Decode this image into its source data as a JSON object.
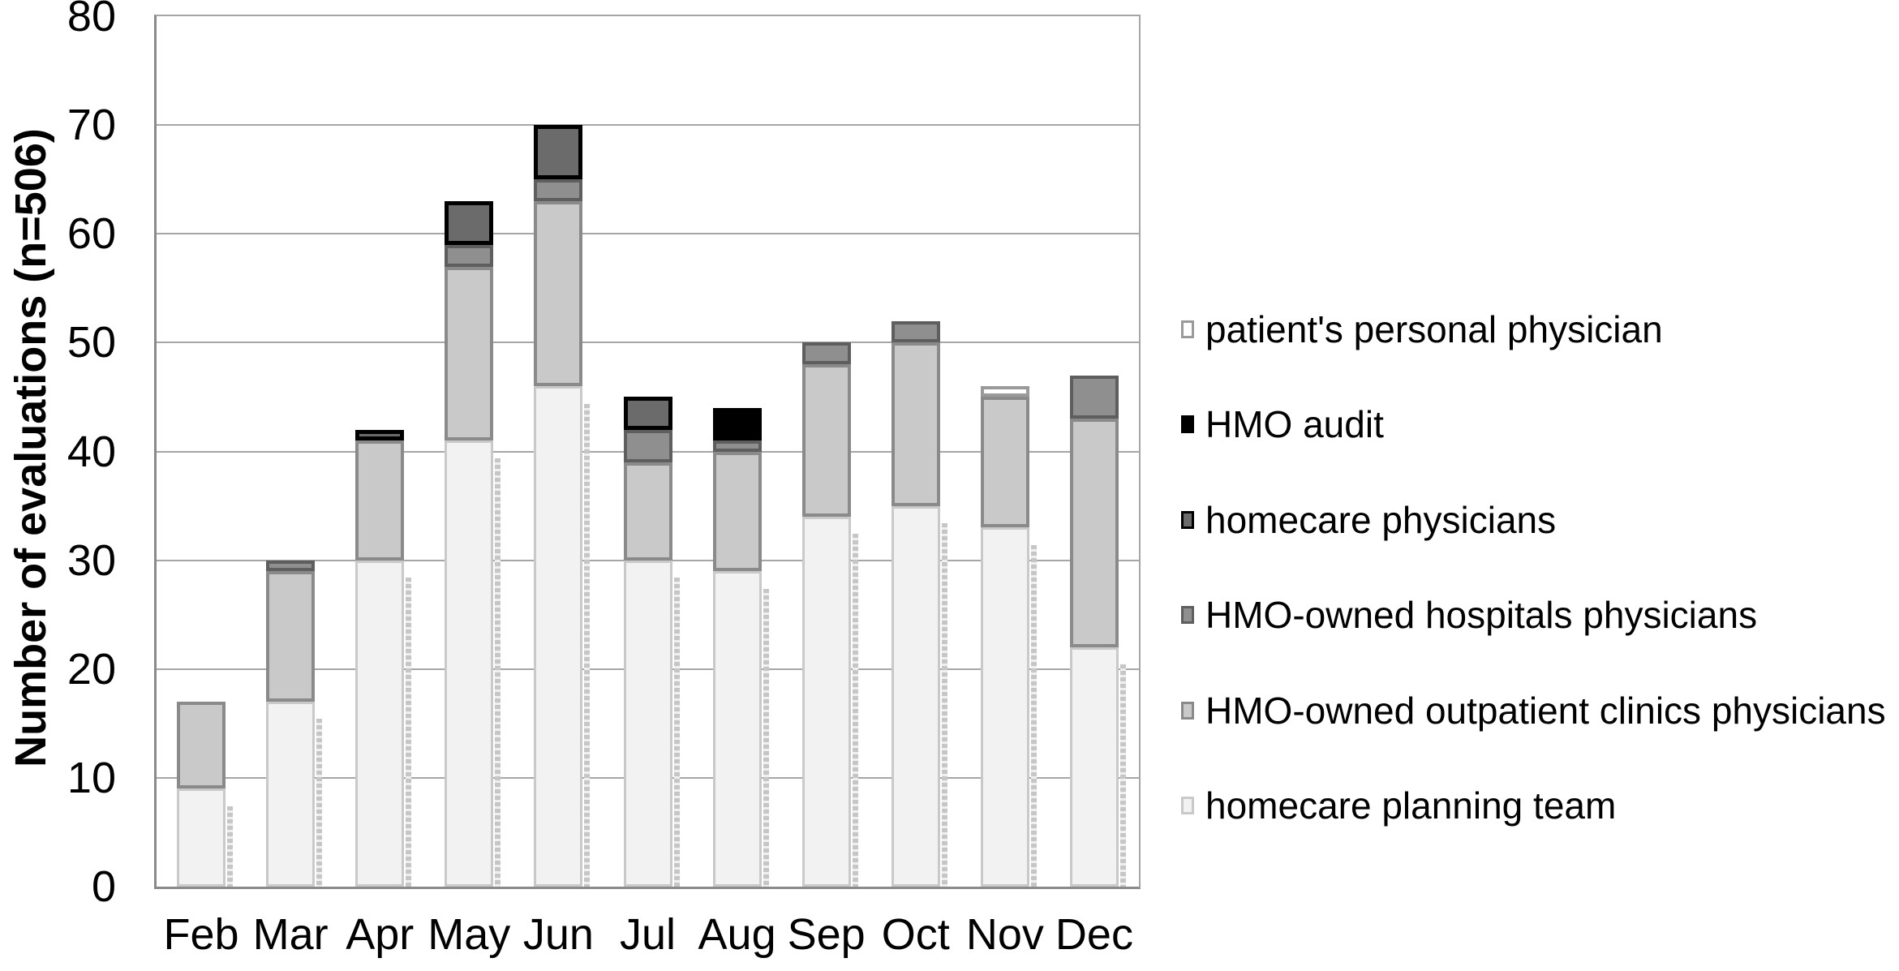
{
  "chart_data": {
    "type": "bar",
    "stacked": true,
    "title": "",
    "xlabel": "",
    "ylabel": "Number of evaluations (n=506)",
    "ylim": [
      0,
      80
    ],
    "ytick_step": 10,
    "ytick_labels": [
      "0",
      "10",
      "20",
      "30",
      "40",
      "50",
      "60",
      "70",
      "80"
    ],
    "grid": "horizontal",
    "legend_position": "right",
    "categories": [
      "Feb",
      "Mar",
      "Apr",
      "May",
      "Jun",
      "Jul",
      "Aug",
      "Sep",
      "Oct",
      "Nov",
      "Dec"
    ],
    "series": [
      {
        "name": "homecare planning team",
        "color": "#f2f2f2",
        "border_color": "#c9c9c9",
        "values": [
          9,
          17,
          30,
          41,
          46,
          30,
          29,
          34,
          35,
          33,
          22
        ]
      },
      {
        "name": "HMO-owned outpatient clinics physicians",
        "color": "#c9c9c9",
        "border_color": "#8a8a8a",
        "values": [
          8,
          12,
          11,
          16,
          17,
          9,
          11,
          14,
          15,
          12,
          21
        ]
      },
      {
        "name": "HMO-owned hospitals physicians",
        "color": "#8f8f8f",
        "border_color": "#5e5e5e",
        "values": [
          0,
          1,
          0,
          2,
          2,
          3,
          1,
          2,
          2,
          0,
          4
        ]
      },
      {
        "name": "homecare physicians",
        "color": "#6b6b6b",
        "border_color": "#000000",
        "values": [
          0,
          0,
          1,
          4,
          5,
          3,
          0,
          0,
          0,
          0,
          0
        ]
      },
      {
        "name": "HMO audit",
        "color": "#000000",
        "border_color": "#000000",
        "values": [
          0,
          0,
          0,
          0,
          0,
          0,
          3,
          0,
          0,
          0,
          0
        ]
      },
      {
        "name": "patient's personal physician",
        "color": "#ffffff",
        "border_color": "#9a9a9a",
        "values": [
          0,
          0,
          0,
          0,
          0,
          0,
          0,
          0,
          0,
          1,
          0
        ]
      }
    ],
    "stack_order_note": "series listed bottom-to-top of stack",
    "totals_per_month": [
      17,
      30,
      42,
      63,
      70,
      45,
      44,
      50,
      52,
      46,
      47
    ],
    "n_total": 506,
    "legend_entries_top_to_bottom": [
      "patient's personal physician",
      "HMO audit",
      "homecare physicians",
      "HMO-owned hospitals physicians",
      "HMO-owned outpatient clinics physicians",
      "homecare planning team"
    ]
  },
  "style_colors": {
    "gridline": "#a6a6a6",
    "axis": "#8a8a8a",
    "text": "#000000",
    "bar_shadow": "#c6c6c6",
    "background": "#ffffff"
  }
}
